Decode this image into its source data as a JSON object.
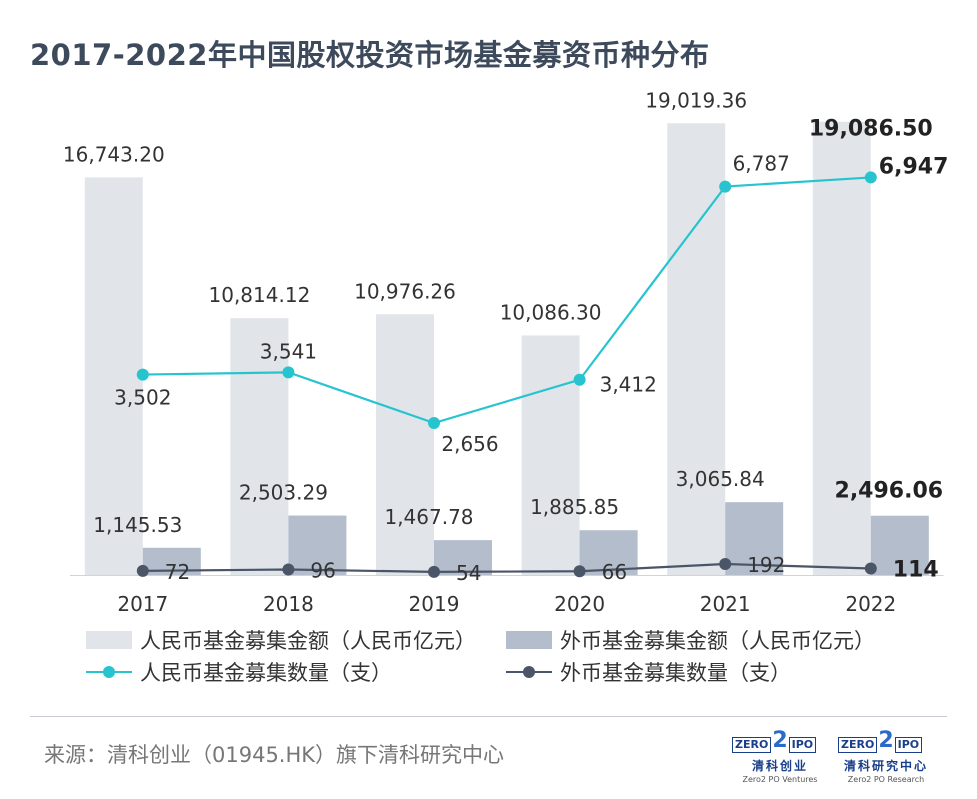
{
  "title": "2017-2022年中国股权投资市场基金募资币种分布",
  "chart_data": {
    "type": "bar",
    "categories": [
      "2017",
      "2018",
      "2019",
      "2020",
      "2021",
      "2022"
    ],
    "series": [
      {
        "name": "人民币基金募集金额（人民币亿元）",
        "kind": "bar",
        "axis": "left",
        "color": "#e1e5ea",
        "values": [
          16743.2,
          10814.12,
          10976.26,
          10086.3,
          19019.36,
          19086.5
        ],
        "labels": [
          "16,743.20",
          "10,814.12",
          "10,976.26",
          "10,086.30",
          "19,019.36",
          "19,086.50"
        ]
      },
      {
        "name": "外币基金募集金额（人民币亿元）",
        "kind": "bar",
        "axis": "left",
        "color": "#b4bdcc",
        "values": [
          1145.53,
          2503.29,
          1467.78,
          1885.85,
          3065.84,
          2496.06
        ],
        "labels": [
          "1,145.53",
          "2,503.29",
          "1,467.78",
          "1,885.85",
          "3,065.84",
          "2,496.06"
        ]
      },
      {
        "name": "人民币基金募集数量（支）",
        "kind": "line",
        "axis": "right",
        "color": "#27c4cf",
        "values": [
          3502,
          3541,
          2656,
          3412,
          6787,
          6947
        ],
        "labels": [
          "3,502",
          "3,541",
          "2,656",
          "3,412",
          "6,787",
          "6,947"
        ]
      },
      {
        "name": "外币基金募集数量（支）",
        "kind": "line",
        "axis": "right",
        "color": "#4a5568",
        "values": [
          72,
          96,
          54,
          66,
          192,
          114
        ],
        "labels": [
          "72",
          "96",
          "54",
          "66",
          "192",
          "114"
        ]
      }
    ],
    "ylim_left": [
      0,
      20000
    ],
    "ylim_right": [
      0,
      8300
    ],
    "grid": false,
    "legend_position": "bottom",
    "highlight_last": true
  },
  "source": "来源：清科创业（01945.HK）旗下清科研究中心",
  "logos": [
    {
      "top_left": "ZERO",
      "top_mid": "2",
      "top_right": "IPO",
      "cn": "清科创业",
      "en": "Zero2 PO Ventures"
    },
    {
      "top_left": "ZERO",
      "top_mid": "2",
      "top_right": "IPO",
      "cn": "清科研究中心",
      "en": "Zero2 PO Research"
    }
  ]
}
